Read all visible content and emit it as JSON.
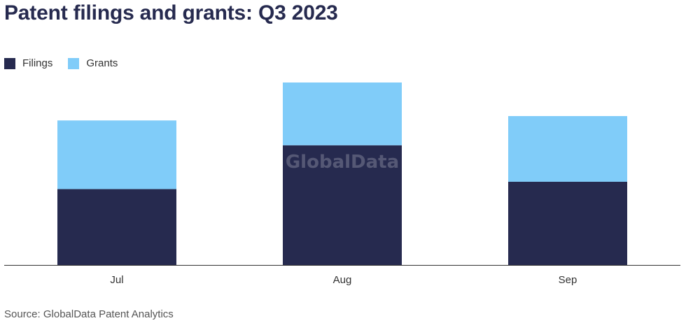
{
  "title": "Patent filings and grants: Q3 2023",
  "source": "Source: GlobalData Patent Analytics",
  "watermark": "GlobalData",
  "colors": {
    "filings": "#262a4f",
    "grants": "#80ccf9",
    "axis": "#333333"
  },
  "chart_data": {
    "type": "bar",
    "stacked": true,
    "categories": [
      "Jul",
      "Aug",
      "Sep"
    ],
    "series": [
      {
        "name": "Filings",
        "values": [
          52,
          82,
          57
        ]
      },
      {
        "name": "Grants",
        "values": [
          47,
          43,
          45
        ]
      }
    ],
    "ylim": [
      0,
      125
    ],
    "grid": false,
    "legend": "top-left",
    "y_axis_labels_shown": false
  }
}
